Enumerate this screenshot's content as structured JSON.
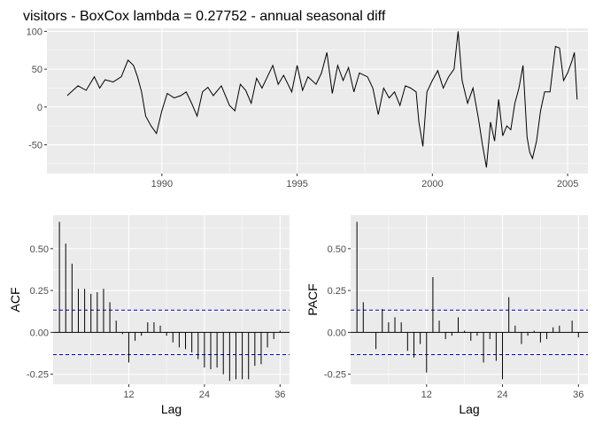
{
  "title": "visitors - BoxCox lambda =  0.27752  - annual seasonal diff",
  "colors": {
    "panel": "#EBEBEB",
    "grid": "#FFFFFF",
    "series": "#000000",
    "bound": "#0000CC",
    "tick": "#4D4D4D"
  },
  "chart_data": [
    {
      "type": "line",
      "title": "visitors - BoxCox lambda =  0.27752  - annual seasonal diff",
      "xlabel": "",
      "ylabel": "",
      "xlim": [
        1985.75,
        2005.75
      ],
      "ylim": [
        -88,
        104
      ],
      "xticks": [
        1990,
        1995,
        2000,
        2005
      ],
      "yticks": [
        -50,
        0,
        50,
        100
      ],
      "grid": true,
      "series": [
        {
          "points": [
            [
              1986.5,
              15
            ],
            [
              1986.9,
              28
            ],
            [
              1987.2,
              22
            ],
            [
              1987.5,
              40
            ],
            [
              1987.7,
              25
            ],
            [
              1987.9,
              36
            ],
            [
              1988.2,
              33
            ],
            [
              1988.5,
              40
            ],
            [
              1988.75,
              62
            ],
            [
              1988.95,
              55
            ],
            [
              1989.1,
              40
            ],
            [
              1989.25,
              20
            ],
            [
              1989.4,
              -12
            ],
            [
              1989.6,
              -25
            ],
            [
              1989.8,
              -35
            ],
            [
              1990.0,
              -5
            ],
            [
              1990.2,
              18
            ],
            [
              1990.45,
              12
            ],
            [
              1990.7,
              15
            ],
            [
              1990.9,
              20
            ],
            [
              1991.1,
              5
            ],
            [
              1991.3,
              -12
            ],
            [
              1991.5,
              20
            ],
            [
              1991.7,
              26
            ],
            [
              1991.9,
              15
            ],
            [
              1992.2,
              28
            ],
            [
              1992.5,
              2
            ],
            [
              1992.7,
              -5
            ],
            [
              1992.9,
              30
            ],
            [
              1993.1,
              22
            ],
            [
              1993.3,
              5
            ],
            [
              1993.5,
              38
            ],
            [
              1993.7,
              25
            ],
            [
              1993.9,
              40
            ],
            [
              1994.1,
              55
            ],
            [
              1994.3,
              30
            ],
            [
              1994.5,
              42
            ],
            [
              1994.8,
              20
            ],
            [
              1995.0,
              55
            ],
            [
              1995.2,
              22
            ],
            [
              1995.4,
              40
            ],
            [
              1995.7,
              30
            ],
            [
              1995.9,
              45
            ],
            [
              1996.1,
              72
            ],
            [
              1996.3,
              18
            ],
            [
              1996.5,
              55
            ],
            [
              1996.7,
              35
            ],
            [
              1996.9,
              52
            ],
            [
              1997.1,
              20
            ],
            [
              1997.3,
              45
            ],
            [
              1997.6,
              40
            ],
            [
              1997.8,
              25
            ],
            [
              1998.0,
              -10
            ],
            [
              1998.2,
              25
            ],
            [
              1998.4,
              12
            ],
            [
              1998.6,
              20
            ],
            [
              1998.8,
              2
            ],
            [
              1999.0,
              28
            ],
            [
              1999.2,
              25
            ],
            [
              1999.4,
              20
            ],
            [
              1999.5,
              -20
            ],
            [
              1999.65,
              -52
            ],
            [
              1999.8,
              20
            ],
            [
              2000.0,
              35
            ],
            [
              2000.2,
              48
            ],
            [
              2000.4,
              25
            ],
            [
              2000.6,
              40
            ],
            [
              2000.8,
              50
            ],
            [
              2000.95,
              100
            ],
            [
              2001.1,
              35
            ],
            [
              2001.3,
              5
            ],
            [
              2001.5,
              25
            ],
            [
              2001.7,
              -15
            ],
            [
              2001.85,
              -50
            ],
            [
              2002.0,
              -80
            ],
            [
              2002.15,
              -20
            ],
            [
              2002.3,
              -45
            ],
            [
              2002.45,
              10
            ],
            [
              2002.6,
              -38
            ],
            [
              2002.75,
              -25
            ],
            [
              2002.9,
              -30
            ],
            [
              2003.05,
              5
            ],
            [
              2003.2,
              25
            ],
            [
              2003.35,
              55
            ],
            [
              2003.5,
              -40
            ],
            [
              2003.6,
              -60
            ],
            [
              2003.7,
              -68
            ],
            [
              2003.85,
              -45
            ],
            [
              2004.0,
              -5
            ],
            [
              2004.15,
              20
            ],
            [
              2004.35,
              20
            ],
            [
              2004.55,
              80
            ],
            [
              2004.7,
              78
            ],
            [
              2004.85,
              35
            ],
            [
              2005.0,
              45
            ],
            [
              2005.15,
              60
            ],
            [
              2005.25,
              72
            ],
            [
              2005.35,
              10
            ]
          ]
        }
      ]
    },
    {
      "type": "bar",
      "xlabel": "Lag",
      "ylabel": "ACF",
      "xlim": [
        0,
        37.5
      ],
      "ylim": [
        -0.31,
        0.7
      ],
      "xticks": [
        12,
        24,
        36
      ],
      "yticks": [
        -0.25,
        0.0,
        0.25,
        0.5
      ],
      "bounds": [
        0.133,
        -0.133
      ],
      "lags": [
        1,
        2,
        3,
        4,
        5,
        6,
        7,
        8,
        9,
        10,
        11,
        12,
        13,
        14,
        15,
        16,
        17,
        18,
        19,
        20,
        21,
        22,
        23,
        24,
        25,
        26,
        27,
        28,
        29,
        30,
        31,
        32,
        33,
        34,
        35,
        36
      ],
      "values": [
        0.66,
        0.53,
        0.41,
        0.26,
        0.26,
        0.23,
        0.24,
        0.26,
        0.18,
        0.07,
        -0.01,
        -0.18,
        -0.05,
        -0.02,
        0.06,
        0.06,
        0.04,
        -0.02,
        -0.06,
        -0.09,
        -0.1,
        -0.12,
        -0.16,
        -0.21,
        -0.22,
        -0.21,
        -0.25,
        -0.29,
        -0.28,
        -0.28,
        -0.28,
        -0.2,
        -0.19,
        -0.09,
        -0.04,
        0.01
      ]
    },
    {
      "type": "bar",
      "xlabel": "Lag",
      "ylabel": "PACF",
      "xlim": [
        0,
        37.5
      ],
      "ylim": [
        -0.31,
        0.7
      ],
      "xticks": [
        12,
        24,
        36
      ],
      "yticks": [
        -0.25,
        0.0,
        0.25,
        0.5
      ],
      "bounds": [
        0.133,
        -0.133
      ],
      "lags": [
        1,
        2,
        3,
        4,
        5,
        6,
        7,
        8,
        9,
        10,
        11,
        12,
        13,
        14,
        15,
        16,
        17,
        18,
        19,
        20,
        21,
        22,
        23,
        24,
        25,
        26,
        27,
        28,
        29,
        30,
        31,
        32,
        33,
        34,
        35,
        36
      ],
      "values": [
        0.66,
        0.18,
        0.0,
        -0.1,
        0.14,
        0.06,
        0.09,
        0.06,
        -0.11,
        -0.15,
        -0.07,
        -0.24,
        0.33,
        0.07,
        -0.04,
        -0.02,
        0.09,
        0.01,
        -0.05,
        -0.02,
        -0.18,
        -0.04,
        -0.17,
        -0.28,
        0.21,
        0.04,
        -0.07,
        -0.02,
        0.01,
        -0.06,
        -0.04,
        0.03,
        0.04,
        0.0,
        0.07,
        -0.03
      ]
    }
  ]
}
